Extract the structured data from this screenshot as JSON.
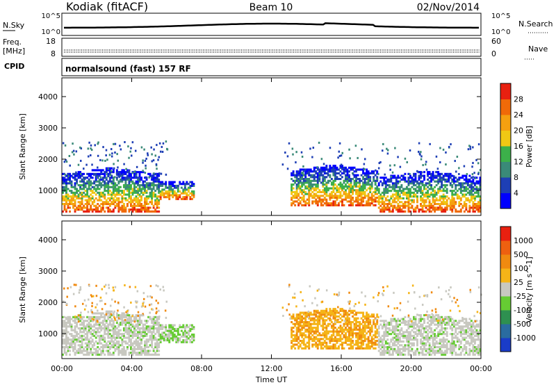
{
  "header": {
    "station": "Kodiak (fitACF)",
    "beam": "Beam 10",
    "date": "02/Nov/2014"
  },
  "summary_panels": {
    "nsky_label": "N.Sky",
    "nsearch_label": "N.Search",
    "sky_ticks": [
      "10^5",
      "10^0"
    ],
    "freq_label": [
      "Freq.",
      "[MHz]"
    ],
    "freq_ticks": [
      "18",
      "8"
    ],
    "nave_label": "Nave",
    "nave_ticks": [
      "60",
      "0"
    ],
    "cpid_label": "CPID",
    "cpid_value": "normalsound (fast) 157 RF"
  },
  "chart_data": [
    {
      "type": "heatmap",
      "title": "",
      "xlabel": "Time UT",
      "ylabel": "Slant Range [km]",
      "xticks": [
        "00:00",
        "04:00",
        "08:00",
        "12:00",
        "16:00",
        "20:00",
        "00:00"
      ],
      "xlim_hours": [
        0,
        24
      ],
      "ylim": [
        200,
        4600
      ],
      "yticks": [
        1000,
        2000,
        3000,
        4000
      ],
      "colorbar": {
        "label": "Power [dB]",
        "ticks": [
          "4",
          "8",
          "12",
          "16",
          "20",
          "24",
          "28"
        ],
        "colors": [
          "#0000ff",
          "#1e3fb5",
          "#3a8a78",
          "#3cb04a",
          "#f0c814",
          "#f5a010",
          "#f06a08",
          "#e82010"
        ]
      },
      "description_regions": [
        {
          "t": [
            0.0,
            5.5
          ],
          "r": [
            300,
            1700
          ],
          "level": "high"
        },
        {
          "t": [
            5.5,
            7.5
          ],
          "r": [
            700,
            1250
          ],
          "level": "medium"
        },
        {
          "t": [
            13.0,
            18.0
          ],
          "r": [
            500,
            1800
          ],
          "level": "high"
        },
        {
          "t": [
            18.0,
            24.0
          ],
          "r": [
            300,
            1600
          ],
          "level": "high"
        }
      ]
    },
    {
      "type": "heatmap",
      "title": "",
      "xlabel": "Time UT",
      "ylabel": "Slant Range [km]",
      "xticks": [
        "00:00",
        "04:00",
        "08:00",
        "12:00",
        "16:00",
        "20:00",
        "00:00"
      ],
      "xlim_hours": [
        0,
        24
      ],
      "ylim": [
        200,
        4600
      ],
      "yticks": [
        1000,
        2000,
        3000,
        4000
      ],
      "colorbar": {
        "label": "Velocity [m s^-1]",
        "ticks": [
          "1000",
          "500",
          "100",
          "25",
          "-25",
          "-100",
          "-500",
          "-1000"
        ],
        "colors": [
          "#1a3cc8",
          "#2a6ca0",
          "#2e9050",
          "#66cc33",
          "#c8c8c0",
          "#f5b418",
          "#f08a10",
          "#ee6010",
          "#e82010"
        ]
      }
    }
  ]
}
